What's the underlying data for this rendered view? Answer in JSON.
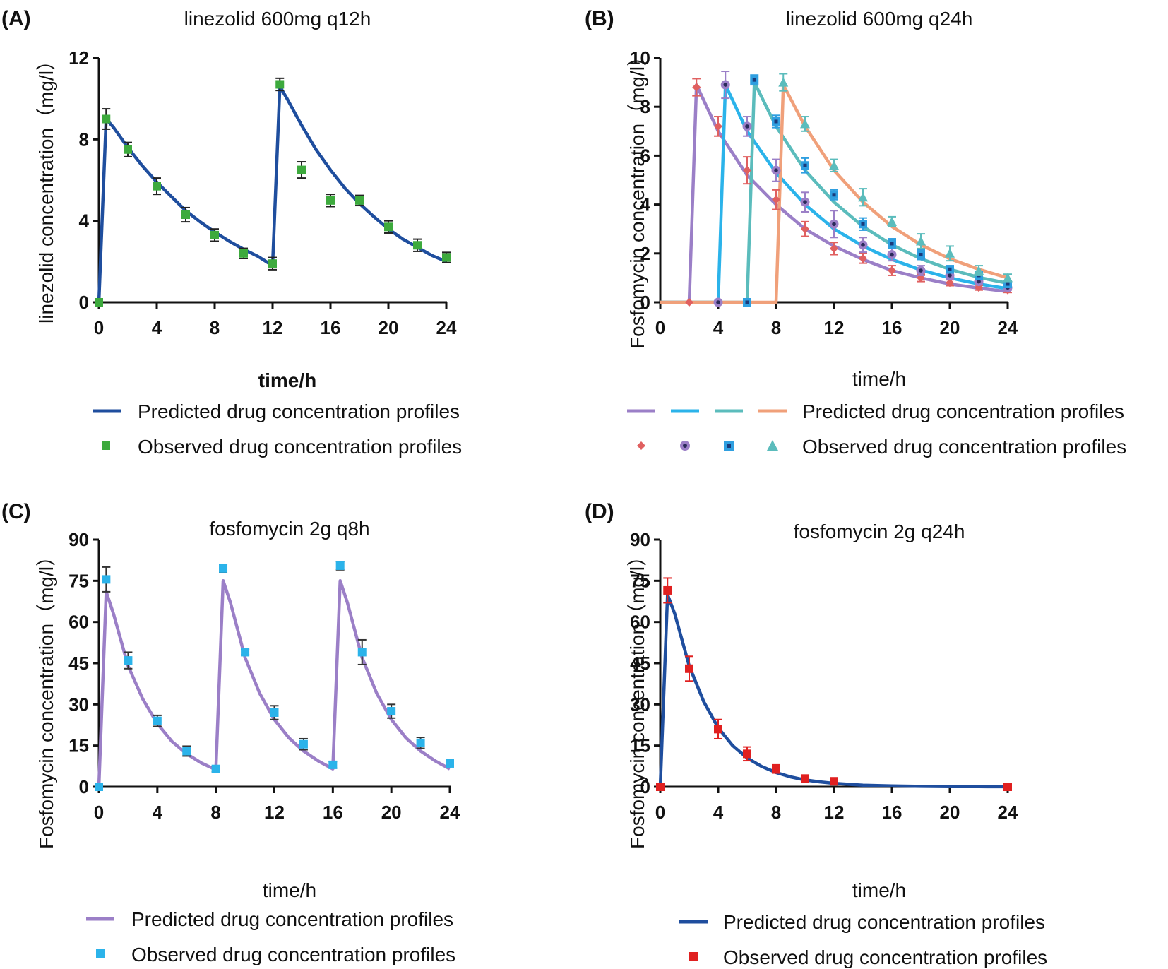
{
  "chart_data": [
    {
      "panel": "(A)",
      "type": "line",
      "title": "linezolid 600mg q12h",
      "xlabel": "time/h",
      "ylabel": "linezolid concentration（mg/l）",
      "xlim": [
        0,
        24
      ],
      "ylim": [
        0,
        12
      ],
      "xticks": [
        0,
        4,
        8,
        12,
        16,
        20,
        24
      ],
      "yticks": [
        0,
        4,
        8,
        12
      ],
      "grid": false,
      "legend": {
        "predicted": "Predicted drug concentration profiles",
        "observed": "Observed drug concentration profiles"
      },
      "series": [
        {
          "name": "Predicted",
          "kind": "line",
          "color": "#1f4e9e",
          "x": [
            0,
            0.5,
            1,
            2,
            3,
            4,
            5,
            6,
            7,
            8,
            9,
            10,
            11,
            12,
            12.5,
            13,
            14,
            15,
            16,
            17,
            18,
            19,
            20,
            21,
            22,
            23,
            24
          ],
          "values": [
            0,
            9.0,
            8.6,
            7.6,
            6.7,
            5.9,
            5.2,
            4.5,
            3.95,
            3.45,
            3.0,
            2.6,
            2.25,
            1.8,
            10.6,
            10.0,
            8.7,
            7.5,
            6.5,
            5.6,
            4.85,
            4.2,
            3.6,
            3.1,
            2.7,
            2.3,
            2.0
          ]
        },
        {
          "name": "Observed",
          "kind": "scatter",
          "marker": "square",
          "color": "#3daa3d",
          "x": [
            0,
            0.5,
            2,
            4,
            6,
            8,
            10,
            12,
            12.5,
            14,
            16,
            18,
            20,
            22,
            24
          ],
          "values": [
            0,
            9.0,
            7.5,
            5.7,
            4.3,
            3.3,
            2.4,
            1.9,
            10.7,
            6.5,
            5.0,
            5.0,
            3.7,
            2.8,
            2.2
          ],
          "errors": [
            0,
            0.5,
            0.35,
            0.4,
            0.35,
            0.3,
            0.25,
            0.3,
            0.3,
            0.4,
            0.3,
            0.25,
            0.3,
            0.3,
            0.25
          ]
        }
      ]
    },
    {
      "panel": "(B)",
      "type": "line",
      "title": "linezolid 600mg q24h",
      "xlabel": "time/h",
      "ylabel": "Fosfomycin concentration（mg/l）",
      "xlim": [
        0,
        24
      ],
      "ylim": [
        0,
        10
      ],
      "xticks": [
        0,
        4,
        8,
        12,
        16,
        20,
        24
      ],
      "yticks": [
        0,
        2,
        4,
        6,
        8,
        10
      ],
      "grid": false,
      "legend": {
        "predicted": "Predicted drug concentration profiles",
        "observed": "Observed drug concentration profiles"
      },
      "series": [
        {
          "name": "Predicted (start 2h)",
          "kind": "line",
          "color": "#9b7fc7",
          "x": [
            0,
            2,
            2.5,
            4,
            6,
            8,
            10,
            12,
            14,
            16,
            18,
            20,
            22,
            24
          ],
          "values": [
            0,
            0,
            8.9,
            7.0,
            5.2,
            4.0,
            3.0,
            2.3,
            1.75,
            1.3,
            1.0,
            0.75,
            0.58,
            0.44
          ]
        },
        {
          "name": "Predicted (start 4h)",
          "kind": "line",
          "color": "#2bb3ea",
          "x": [
            0,
            4,
            4.5,
            6,
            8,
            10,
            12,
            14,
            16,
            18,
            20,
            22,
            24
          ],
          "values": [
            0,
            0,
            8.9,
            7.0,
            5.3,
            4.0,
            3.0,
            2.3,
            1.75,
            1.32,
            1.0,
            0.75,
            0.56
          ]
        },
        {
          "name": "Predicted (start 6h)",
          "kind": "line",
          "color": "#5bbcbc",
          "x": [
            0,
            6,
            6.5,
            8,
            10,
            12,
            14,
            16,
            18,
            20,
            22,
            24
          ],
          "values": [
            0,
            0,
            9.0,
            7.2,
            5.4,
            4.1,
            3.1,
            2.35,
            1.78,
            1.35,
            1.02,
            0.78
          ]
        },
        {
          "name": "Predicted (start 8h)",
          "kind": "line",
          "color": "#f0a07a",
          "x": [
            0,
            8,
            8.5,
            10,
            12,
            14,
            16,
            18,
            20,
            22,
            24
          ],
          "values": [
            0,
            0,
            8.9,
            7.2,
            5.4,
            4.1,
            3.1,
            2.35,
            1.78,
            1.35,
            1.0
          ]
        },
        {
          "name": "Observed 1",
          "kind": "scatter",
          "marker": "diamond",
          "color": "#e06060",
          "x": [
            2,
            2.5,
            4,
            6,
            8,
            10,
            12,
            14,
            16,
            18,
            20,
            22,
            24
          ],
          "values": [
            0,
            8.8,
            7.2,
            5.4,
            4.2,
            3.0,
            2.2,
            1.8,
            1.3,
            1.0,
            0.8,
            0.6,
            0.5
          ],
          "errors": [
            0,
            0.35,
            0.4,
            0.55,
            0.4,
            0.3,
            0.25,
            0.2,
            0.2,
            0.15,
            0.12,
            0.1,
            0.1
          ]
        },
        {
          "name": "Observed 2",
          "kind": "scatter",
          "marker": "circle",
          "color": "#9b7fc7",
          "x": [
            4,
            4.5,
            6,
            8,
            10,
            12,
            14,
            16,
            18,
            20,
            22,
            24
          ],
          "values": [
            0,
            8.9,
            7.2,
            5.4,
            4.1,
            3.2,
            2.35,
            1.95,
            1.3,
            1.1,
            0.85,
            0.6
          ],
          "errors": [
            0,
            0.55,
            0.4,
            0.45,
            0.4,
            0.55,
            0.3,
            0.25,
            0.2,
            0.15,
            0.12,
            0.1
          ]
        },
        {
          "name": "Observed 3",
          "kind": "scatter",
          "marker": "square",
          "color": "#2f9fe0",
          "x": [
            6,
            6.5,
            8,
            10,
            12,
            14,
            16,
            18,
            20,
            22,
            24
          ],
          "values": [
            0,
            9.1,
            7.4,
            5.6,
            4.4,
            3.2,
            2.4,
            1.95,
            1.35,
            1.1,
            0.75
          ],
          "errors": [
            0,
            0.2,
            0.25,
            0.3,
            0.2,
            0.25,
            0.2,
            0.2,
            0.15,
            0.15,
            0.1
          ]
        },
        {
          "name": "Observed 4",
          "kind": "scatter",
          "marker": "triangle",
          "color": "#5bbcbc",
          "x": [
            8.5,
            10,
            12,
            14,
            16,
            18,
            20,
            22,
            24
          ],
          "values": [
            9.0,
            7.3,
            5.6,
            4.3,
            3.3,
            2.5,
            2.0,
            1.3,
            1.0
          ],
          "errors": [
            0.35,
            0.3,
            0.25,
            0.35,
            0.2,
            0.3,
            0.3,
            0.2,
            0.15
          ]
        }
      ]
    },
    {
      "panel": "(C)",
      "type": "line",
      "title": "fosfomycin 2g q8h",
      "xlabel": "time/h",
      "ylabel": "Fosfomycin concentration（mg/l）",
      "xlim": [
        0,
        24
      ],
      "ylim": [
        0,
        90
      ],
      "xticks": [
        0,
        4,
        8,
        12,
        16,
        20,
        24
      ],
      "yticks": [
        0,
        15,
        30,
        45,
        60,
        75,
        90
      ],
      "grid": false,
      "legend": {
        "predicted": "Predicted drug concentration profiles",
        "observed": "Observed drug concentration profiles"
      },
      "series": [
        {
          "name": "Predicted",
          "kind": "line",
          "color": "#9b7fc7",
          "x": [
            0,
            0.5,
            1,
            2,
            3,
            4,
            5,
            6,
            7,
            8,
            8.5,
            9,
            10,
            11,
            12,
            13,
            14,
            15,
            16,
            16.5,
            17,
            18,
            19,
            20,
            21,
            22,
            23,
            24
          ],
          "values": [
            0,
            71,
            63,
            44,
            32,
            23,
            16.5,
            12,
            8.7,
            6.2,
            75,
            67,
            47,
            34,
            24.5,
            17.8,
            13,
            9.4,
            6.5,
            75,
            67,
            47,
            34,
            24.5,
            17.8,
            13,
            9.4,
            6.5
          ]
        },
        {
          "name": "Observed",
          "kind": "scatter",
          "marker": "square",
          "color": "#2bb3ea",
          "x": [
            0,
            0.5,
            2,
            4,
            6,
            8,
            8.5,
            10,
            12,
            14,
            16,
            16.5,
            18,
            20,
            22,
            24
          ],
          "values": [
            0,
            75.5,
            46,
            24,
            13,
            6.5,
            79.5,
            49,
            27,
            15.5,
            8,
            80.5,
            49,
            27.5,
            16,
            8.5
          ],
          "errors": [
            0,
            4.5,
            3,
            2,
            1.8,
            1,
            1.5,
            1,
            2.5,
            2,
            1.2,
            1.5,
            4.5,
            2.5,
            2,
            1
          ]
        }
      ]
    },
    {
      "panel": "(D)",
      "type": "line",
      "title": "fosfomycin 2g q24h",
      "xlabel": "time/h",
      "ylabel": "Fosfomycin concentration（mg/l）",
      "xlim": [
        0,
        24
      ],
      "ylim": [
        0,
        90
      ],
      "xticks": [
        0,
        4,
        8,
        12,
        16,
        20,
        24
      ],
      "yticks": [
        0,
        15,
        30,
        45,
        60,
        75,
        90
      ],
      "grid": false,
      "legend": {
        "predicted": "Predicted drug concentration profiles",
        "observed": "Observed drug concentration profiles"
      },
      "series": [
        {
          "name": "Predicted",
          "kind": "line",
          "color": "#1f4e9e",
          "x": [
            0,
            0.5,
            1,
            2,
            3,
            4,
            5,
            6,
            7,
            8,
            9,
            10,
            11,
            12,
            14,
            16,
            18,
            20,
            22,
            24
          ],
          "values": [
            0,
            70,
            63,
            44,
            31,
            21.5,
            15,
            10.5,
            7.4,
            5.2,
            3.6,
            2.5,
            1.8,
            1.25,
            0.6,
            0.3,
            0.15,
            0.08,
            0.04,
            0.02
          ]
        },
        {
          "name": "Observed",
          "kind": "scatter",
          "marker": "square",
          "color": "#e02020",
          "x": [
            0,
            0.5,
            2,
            4,
            6,
            8,
            10,
            12,
            24
          ],
          "values": [
            0,
            71.5,
            43,
            21,
            12,
            6.5,
            3,
            2,
            0
          ],
          "errors": [
            0,
            4.5,
            4.5,
            3.5,
            2.5,
            1.5,
            0.8,
            0.6,
            0
          ]
        }
      ]
    }
  ]
}
